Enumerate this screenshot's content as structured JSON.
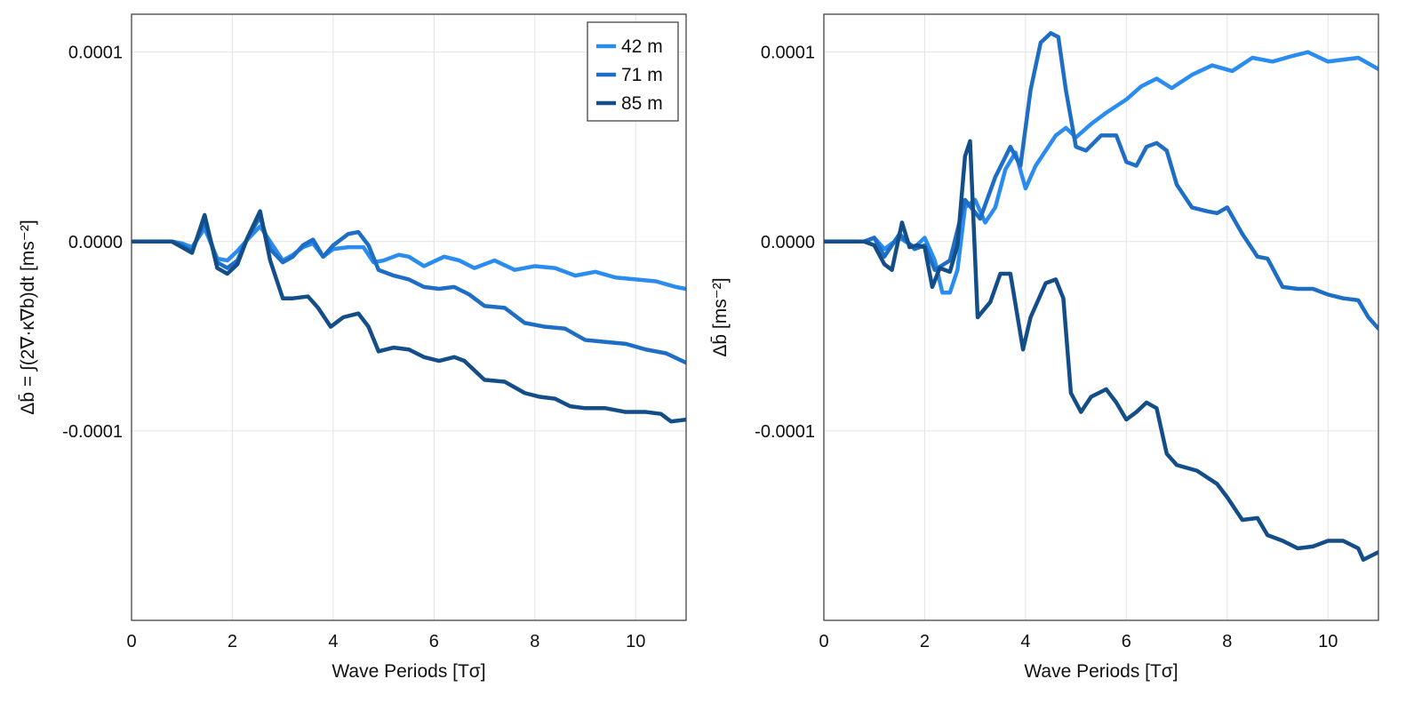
{
  "colors": {
    "series": [
      "#2b8cf0",
      "#1f6ec5",
      "#144e89"
    ],
    "grid": "#e3e3e3",
    "frame": "#444444",
    "background": "#ffffff"
  },
  "chart_data": [
    {
      "type": "line",
      "xlabel": "Wave Periods [Tσ]",
      "ylabel": "Δb̄ = ∫(2∇·κ∇b)dt [ms⁻²]",
      "xlim": [
        0,
        11
      ],
      "ylim": [
        -0.0002,
        0.00012
      ],
      "xticks": [
        0,
        2,
        4,
        6,
        8,
        10
      ],
      "xtick_labels": [
        "0",
        "2",
        "4",
        "6",
        "8",
        "10"
      ],
      "yticks": [
        0.0001,
        0.0,
        -0.0001
      ],
      "ytick_labels": [
        "0.0001",
        "0.0000",
        "-0.0001"
      ],
      "grid": true,
      "legend": "top-right",
      "series": [
        {
          "name": "42 m",
          "x": [
            0,
            0.5,
            0.8,
            1.0,
            1.2,
            1.45,
            1.7,
            1.9,
            2.1,
            2.3,
            2.55,
            2.75,
            3.0,
            3.2,
            3.4,
            3.6,
            3.8,
            4.0,
            4.3,
            4.6,
            4.8,
            5.0,
            5.3,
            5.5,
            5.8,
            6.2,
            6.5,
            6.8,
            7.2,
            7.6,
            8.0,
            8.4,
            8.8,
            9.2,
            9.6,
            10.0,
            10.4,
            10.8,
            11.0
          ],
          "y": [
            0,
            0,
            0,
            -1e-06,
            -3e-06,
            7e-06,
            -9e-06,
            -1e-05,
            -5e-06,
            1e-06,
            8e-06,
            0,
            -1e-05,
            -7e-06,
            -3e-06,
            -1e-06,
            -8e-06,
            -4e-06,
            -3e-06,
            -3e-06,
            -1.1e-05,
            -1e-05,
            -7e-06,
            -8e-06,
            -1.3e-05,
            -8e-06,
            -1e-05,
            -1.4e-05,
            -1e-05,
            -1.5e-05,
            -1.3e-05,
            -1.4e-05,
            -1.8e-05,
            -1.6e-05,
            -1.9e-05,
            -2e-05,
            -2.1e-05,
            -2.4e-05,
            -2.5e-05
          ]
        },
        {
          "name": "71 m",
          "x": [
            0,
            0.5,
            0.8,
            1.0,
            1.2,
            1.45,
            1.7,
            1.9,
            2.1,
            2.3,
            2.55,
            2.75,
            3.0,
            3.2,
            3.4,
            3.6,
            3.8,
            4.0,
            4.3,
            4.5,
            4.7,
            4.9,
            5.2,
            5.5,
            5.8,
            6.1,
            6.4,
            6.7,
            7.0,
            7.4,
            7.8,
            8.2,
            8.6,
            9.0,
            9.4,
            9.8,
            10.2,
            10.6,
            11.0
          ],
          "y": [
            0,
            0,
            0,
            -2e-06,
            -5e-06,
            1.1e-05,
            -1.1e-05,
            -1.4e-05,
            -1e-05,
            2e-06,
            1.3e-05,
            -4e-06,
            -1.1e-05,
            -8e-06,
            -2e-06,
            1e-06,
            -8e-06,
            -2e-06,
            4e-06,
            5e-06,
            -2e-06,
            -1.5e-05,
            -1.8e-05,
            -2e-05,
            -2.4e-05,
            -2.5e-05,
            -2.4e-05,
            -2.8e-05,
            -3.4e-05,
            -3.5e-05,
            -4.3e-05,
            -4.5e-05,
            -4.6e-05,
            -5.2e-05,
            -5.3e-05,
            -5.4e-05,
            -5.7e-05,
            -5.9e-05,
            -6.4e-05
          ]
        },
        {
          "name": "85 m",
          "x": [
            0,
            0.5,
            0.8,
            1.0,
            1.2,
            1.45,
            1.7,
            1.9,
            2.1,
            2.3,
            2.55,
            2.75,
            3.0,
            3.2,
            3.5,
            3.7,
            3.95,
            4.2,
            4.5,
            4.7,
            4.9,
            5.2,
            5.5,
            5.8,
            6.1,
            6.4,
            6.6,
            6.8,
            7.0,
            7.4,
            7.8,
            8.1,
            8.4,
            8.7,
            9.0,
            9.4,
            9.8,
            10.2,
            10.5,
            10.7,
            11.0
          ],
          "y": [
            0,
            0,
            0,
            -3e-06,
            -6e-06,
            1.4e-05,
            -1.4e-05,
            -1.7e-05,
            -1.2e-05,
            2e-06,
            1.6e-05,
            -1e-05,
            -3e-05,
            -3e-05,
            -2.9e-05,
            -3.5e-05,
            -4.5e-05,
            -4e-05,
            -3.8e-05,
            -4.5e-05,
            -5.8e-05,
            -5.6e-05,
            -5.7e-05,
            -6.1e-05,
            -6.3e-05,
            -6.1e-05,
            -6.3e-05,
            -6.8e-05,
            -7.3e-05,
            -7.4e-05,
            -8e-05,
            -8.2e-05,
            -8.3e-05,
            -8.7e-05,
            -8.8e-05,
            -8.8e-05,
            -9e-05,
            -9e-05,
            -9.1e-05,
            -9.5e-05,
            -9.4e-05
          ]
        }
      ]
    },
    {
      "type": "line",
      "xlabel": "Wave Periods [Tσ]",
      "ylabel": "Δb̄ [ms⁻²]",
      "xlim": [
        0,
        11
      ],
      "ylim": [
        -0.0002,
        0.00012
      ],
      "xticks": [
        0,
        2,
        4,
        6,
        8,
        10
      ],
      "xtick_labels": [
        "0",
        "2",
        "4",
        "6",
        "8",
        "10"
      ],
      "yticks": [
        0.0001,
        0.0,
        -0.0001
      ],
      "ytick_labels": [
        "0.0001",
        "0.0000",
        "-0.0001"
      ],
      "grid": true,
      "series": [
        {
          "name": "42 m",
          "x": [
            0,
            0.8,
            1.0,
            1.2,
            1.5,
            1.8,
            2.0,
            2.2,
            2.35,
            2.5,
            2.65,
            2.8,
            3.0,
            3.2,
            3.4,
            3.6,
            3.8,
            4.0,
            4.2,
            4.4,
            4.6,
            4.8,
            5.0,
            5.3,
            5.6,
            6.0,
            6.3,
            6.6,
            6.9,
            7.3,
            7.7,
            8.1,
            8.5,
            8.9,
            9.3,
            9.6,
            10.0,
            10.3,
            10.6,
            11.0
          ],
          "y": [
            0,
            0,
            2e-06,
            -4e-06,
            2e-06,
            -3e-06,
            2e-06,
            -1e-05,
            -2.7e-05,
            -2.7e-05,
            -1.5e-05,
            1.8e-05,
            2.2e-05,
            1e-05,
            1.8e-05,
            3.8e-05,
            4.7e-05,
            2.8e-05,
            4e-05,
            4.8e-05,
            5.6e-05,
            6e-05,
            5.5e-05,
            6.2e-05,
            6.8e-05,
            7.5e-05,
            8.2e-05,
            8.6e-05,
            8.1e-05,
            8.8e-05,
            9.3e-05,
            9e-05,
            9.7e-05,
            9.5e-05,
            9.8e-05,
            0.0001,
            9.5e-05,
            9.6e-05,
            9.7e-05,
            9.1e-05
          ]
        },
        {
          "name": "71 m",
          "x": [
            0,
            0.8,
            1.0,
            1.2,
            1.5,
            1.8,
            2.0,
            2.2,
            2.5,
            2.8,
            3.1,
            3.4,
            3.7,
            3.9,
            4.1,
            4.3,
            4.5,
            4.65,
            4.8,
            5.0,
            5.2,
            5.5,
            5.8,
            6.0,
            6.2,
            6.4,
            6.6,
            6.8,
            7.0,
            7.3,
            7.6,
            7.8,
            8.0,
            8.3,
            8.6,
            8.8,
            9.1,
            9.4,
            9.7,
            10.0,
            10.3,
            10.6,
            10.8,
            11.0
          ],
          "y": [
            0,
            0,
            2e-06,
            -8e-06,
            4e-06,
            -4e-06,
            -2e-06,
            -1.5e-05,
            -1e-05,
            2.2e-05,
            1.2e-05,
            3.4e-05,
            5e-05,
            4e-05,
            8e-05,
            0.000105,
            0.00011,
            0.000108,
            8e-05,
            5e-05,
            4.8e-05,
            5.6e-05,
            5.6e-05,
            4.2e-05,
            4e-05,
            5e-05,
            5.2e-05,
            4.8e-05,
            3e-05,
            1.8e-05,
            1.6e-05,
            1.5e-05,
            1.8e-05,
            4e-06,
            -8e-06,
            -9e-06,
            -2.4e-05,
            -2.5e-05,
            -2.5e-05,
            -2.8e-05,
            -3e-05,
            -3.1e-05,
            -4e-05,
            -4.6e-05
          ]
        },
        {
          "name": "85 m",
          "x": [
            0,
            0.8,
            1.0,
            1.2,
            1.35,
            1.55,
            1.7,
            1.85,
            2.0,
            2.15,
            2.3,
            2.5,
            2.65,
            2.8,
            2.9,
            3.05,
            3.3,
            3.5,
            3.7,
            3.95,
            4.1,
            4.4,
            4.6,
            4.75,
            4.9,
            5.1,
            5.3,
            5.6,
            5.8,
            6.0,
            6.2,
            6.4,
            6.6,
            6.8,
            7.0,
            7.4,
            7.8,
            8.0,
            8.3,
            8.6,
            8.8,
            9.1,
            9.4,
            9.7,
            10.0,
            10.3,
            10.6,
            10.7,
            11.0
          ],
          "y": [
            0,
            0,
            -2e-06,
            -1.2e-05,
            -1.5e-05,
            1e-05,
            -3e-06,
            -2e-06,
            -3e-06,
            -2.4e-05,
            -1.4e-05,
            -1.6e-05,
            -2e-06,
            4.5e-05,
            5.3e-05,
            -4e-05,
            -3.2e-05,
            -1.7e-05,
            -1.7e-05,
            -5.7e-05,
            -4e-05,
            -2.2e-05,
            -2e-05,
            -3e-05,
            -8e-05,
            -9e-05,
            -8.2e-05,
            -7.8e-05,
            -8.5e-05,
            -9.4e-05,
            -9e-05,
            -8.5e-05,
            -8.8e-05,
            -0.000112,
            -0.000118,
            -0.000121,
            -0.000128,
            -0.000135,
            -0.000147,
            -0.000146,
            -0.000155,
            -0.000158,
            -0.000162,
            -0.000161,
            -0.000158,
            -0.000158,
            -0.000162,
            -0.000168,
            -0.000164
          ]
        }
      ]
    }
  ]
}
